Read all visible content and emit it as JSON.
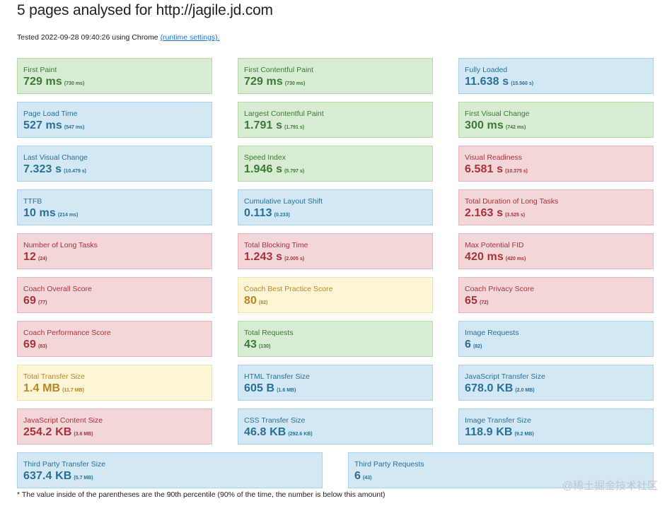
{
  "header": {
    "title": "5 pages analysed for http://jagile.jd.com",
    "tested_prefix": "Tested 2022-09-28 09:40:26 using Chrome ",
    "runtime_link": "(runtime settings)."
  },
  "rows": [
    [
      {
        "label": "First Paint",
        "value": "729 ms",
        "p90": "(730 ms)",
        "status": "green"
      },
      {
        "label": "First Contentful Paint",
        "value": "729 ms",
        "p90": "(730 ms)",
        "status": "green"
      },
      {
        "label": "Fully Loaded",
        "value": "11.638 s",
        "p90": "(15.560 s)",
        "status": "blue"
      }
    ],
    [
      {
        "label": "Page Load Time",
        "value": "527 ms",
        "p90": "(547 ms)",
        "status": "blue"
      },
      {
        "label": "Largest Contentful Paint",
        "value": "1.791 s",
        "p90": "(1.791 s)",
        "status": "green"
      },
      {
        "label": "First Visual Change",
        "value": "300 ms",
        "p90": "(742 ms)",
        "status": "green"
      }
    ],
    [
      {
        "label": "Last Visual Change",
        "value": "7.323 s",
        "p90": "(10.479 s)",
        "status": "blue"
      },
      {
        "label": "Speed Index",
        "value": "1.946 s",
        "p90": "(5.797 s)",
        "status": "green"
      },
      {
        "label": "Visual Readiness",
        "value": "6.581 s",
        "p90": "(10.375 s)",
        "status": "red"
      }
    ],
    [
      {
        "label": "TTFB",
        "value": "10 ms",
        "p90": "(214 ms)",
        "status": "blue"
      },
      {
        "label": "Cumulative Layout Shift",
        "value": "0.113",
        "p90": "(0.233)",
        "status": "blue"
      },
      {
        "label": "Total Duration of Long Tasks",
        "value": "2.163 s",
        "p90": "(3.525 s)",
        "status": "red"
      }
    ],
    [
      {
        "label": "Number of Long Tasks",
        "value": "12",
        "p90": "(24)",
        "status": "red"
      },
      {
        "label": "Total Blocking Time",
        "value": "1.243 s",
        "p90": "(2.005 s)",
        "status": "red"
      },
      {
        "label": "Max Potential FID",
        "value": "420 ms",
        "p90": "(420 ms)",
        "status": "red"
      }
    ],
    [
      {
        "label": "Coach Overall Score",
        "value": "69",
        "p90": "(77)",
        "status": "red"
      },
      {
        "label": "Coach Best Practice Score",
        "value": "80",
        "p90": "(82)",
        "status": "yellow"
      },
      {
        "label": "Coach Privacy Score",
        "value": "65",
        "p90": "(72)",
        "status": "red"
      }
    ],
    [
      {
        "label": "Coach Performance Score",
        "value": "69",
        "p90": "(83)",
        "status": "red"
      },
      {
        "label": "Total Requests",
        "value": "43",
        "p90": "(130)",
        "status": "green"
      },
      {
        "label": "Image Requests",
        "value": "6",
        "p90": "(82)",
        "status": "blue"
      }
    ],
    [
      {
        "label": "Total Transfer Size",
        "value": "1.4 MB",
        "p90": "(11.7 MB)",
        "status": "yellow"
      },
      {
        "label": "HTML Transfer Size",
        "value": "605 B",
        "p90": "(1.6 MB)",
        "status": "blue"
      },
      {
        "label": "JavaScript Transfer Size",
        "value": "678.0 KB",
        "p90": "(2.0 MB)",
        "status": "blue"
      }
    ],
    [
      {
        "label": "JavaScript Content Size",
        "value": "254.2 KB",
        "p90": "(3.6 MB)",
        "status": "red"
      },
      {
        "label": "CSS Transfer Size",
        "value": "46.8 KB",
        "p90": "(292.6 KB)",
        "status": "blue"
      },
      {
        "label": "Image Transfer Size",
        "value": "118.9 KB",
        "p90": "(9.2 MB)",
        "status": "blue"
      }
    ],
    [
      {
        "label": "Third Party Transfer Size",
        "value": "637.4 KB",
        "p90": "(5.7 MB)",
        "status": "blue"
      },
      {
        "label": "Third Party Requests",
        "value": "6",
        "p90": "(43)",
        "status": "blue"
      }
    ]
  ],
  "footnote": "* The value inside of the parentheses are the 90th percentile (90% of the time, the number is below this amount)",
  "watermark": "@稀土掘金技术社区"
}
